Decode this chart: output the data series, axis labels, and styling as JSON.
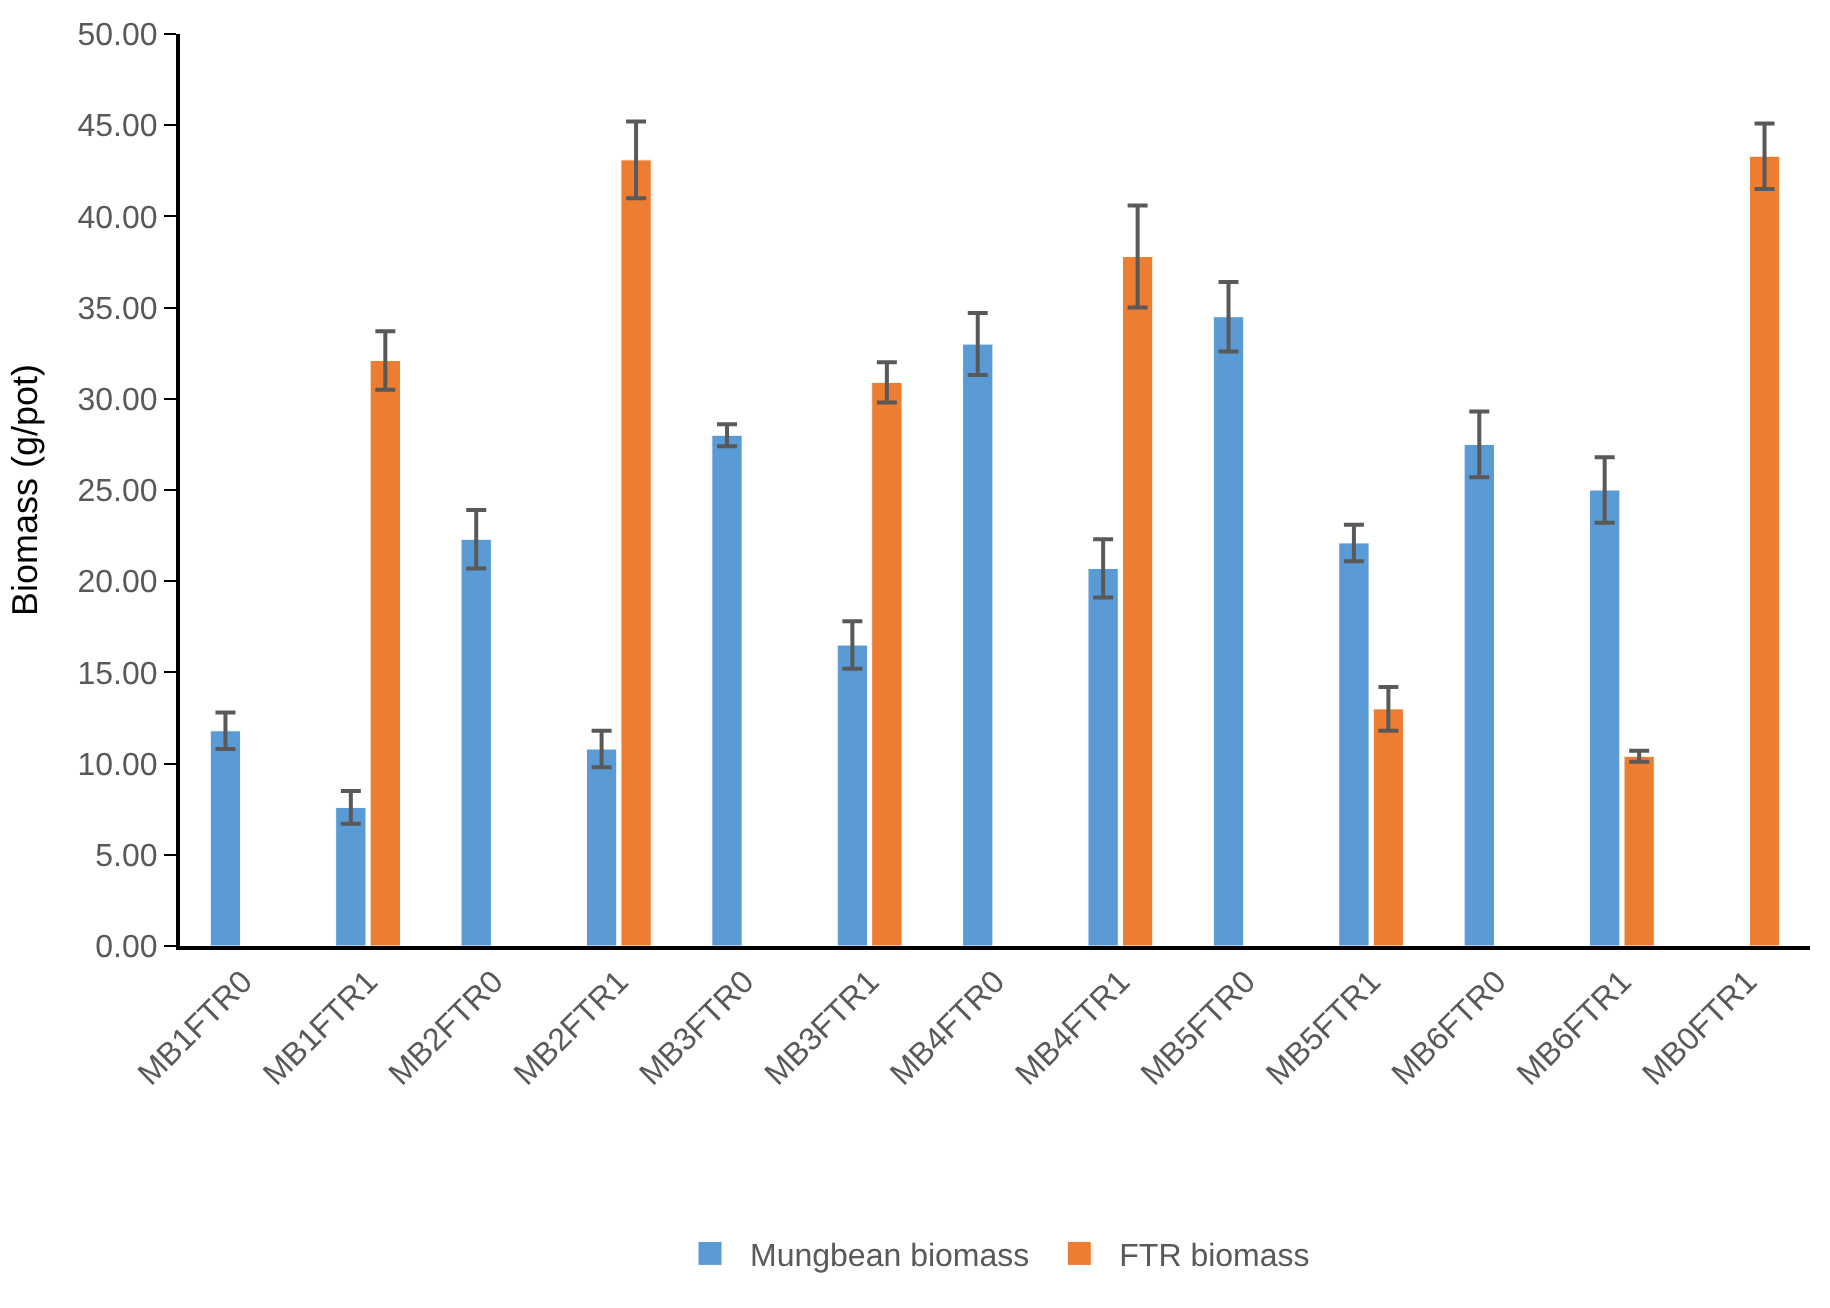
{
  "chart_data": {
    "type": "bar",
    "ylabel": "Biomass (g/pot)",
    "categories": [
      "MB1FTR0",
      "MB1FTR1",
      "MB2FTR0",
      "MB2FTR1",
      "MB3FTR0",
      "MB3FTR1",
      "MB4FTR0",
      "MB4FTR1",
      "MB5FTR0",
      "MB5FTR1",
      "MB6FTR0",
      "MB6FTR1",
      "MB0FTR1"
    ],
    "series": [
      {
        "name": "Mungbean biomass",
        "color": "#5b9bd5",
        "values": [
          11.8,
          7.6,
          22.3,
          10.8,
          28.0,
          16.5,
          33.0,
          20.7,
          34.5,
          22.1,
          27.5,
          25.0,
          null
        ],
        "errors": [
          1.0,
          0.9,
          1.6,
          1.0,
          0.6,
          1.3,
          1.7,
          1.6,
          1.9,
          1.0,
          1.8,
          1.8,
          null
        ]
      },
      {
        "name": "FTR biomass",
        "color": "#ed7d31",
        "values": [
          null,
          32.1,
          null,
          43.1,
          null,
          30.9,
          null,
          37.8,
          null,
          13.0,
          null,
          10.4,
          43.3
        ],
        "errors": [
          null,
          1.6,
          null,
          2.1,
          null,
          1.1,
          null,
          2.8,
          null,
          1.2,
          null,
          0.3,
          1.8
        ]
      }
    ],
    "ylim": [
      0,
      50
    ],
    "yticks": [
      {
        "value": 0,
        "label": "0.00"
      },
      {
        "value": 5,
        "label": "5.00"
      },
      {
        "value": 10,
        "label": "10.00"
      },
      {
        "value": 15,
        "label": "15.00"
      },
      {
        "value": 20,
        "label": "20.00"
      },
      {
        "value": 25,
        "label": "25.00"
      },
      {
        "value": 30,
        "label": "30.00"
      },
      {
        "value": 35,
        "label": "35.00"
      },
      {
        "value": 40,
        "label": "40.00"
      },
      {
        "value": 45,
        "label": "45.00"
      },
      {
        "value": 50,
        "label": "50.00"
      }
    ],
    "grid": false,
    "legend": "bottom"
  }
}
